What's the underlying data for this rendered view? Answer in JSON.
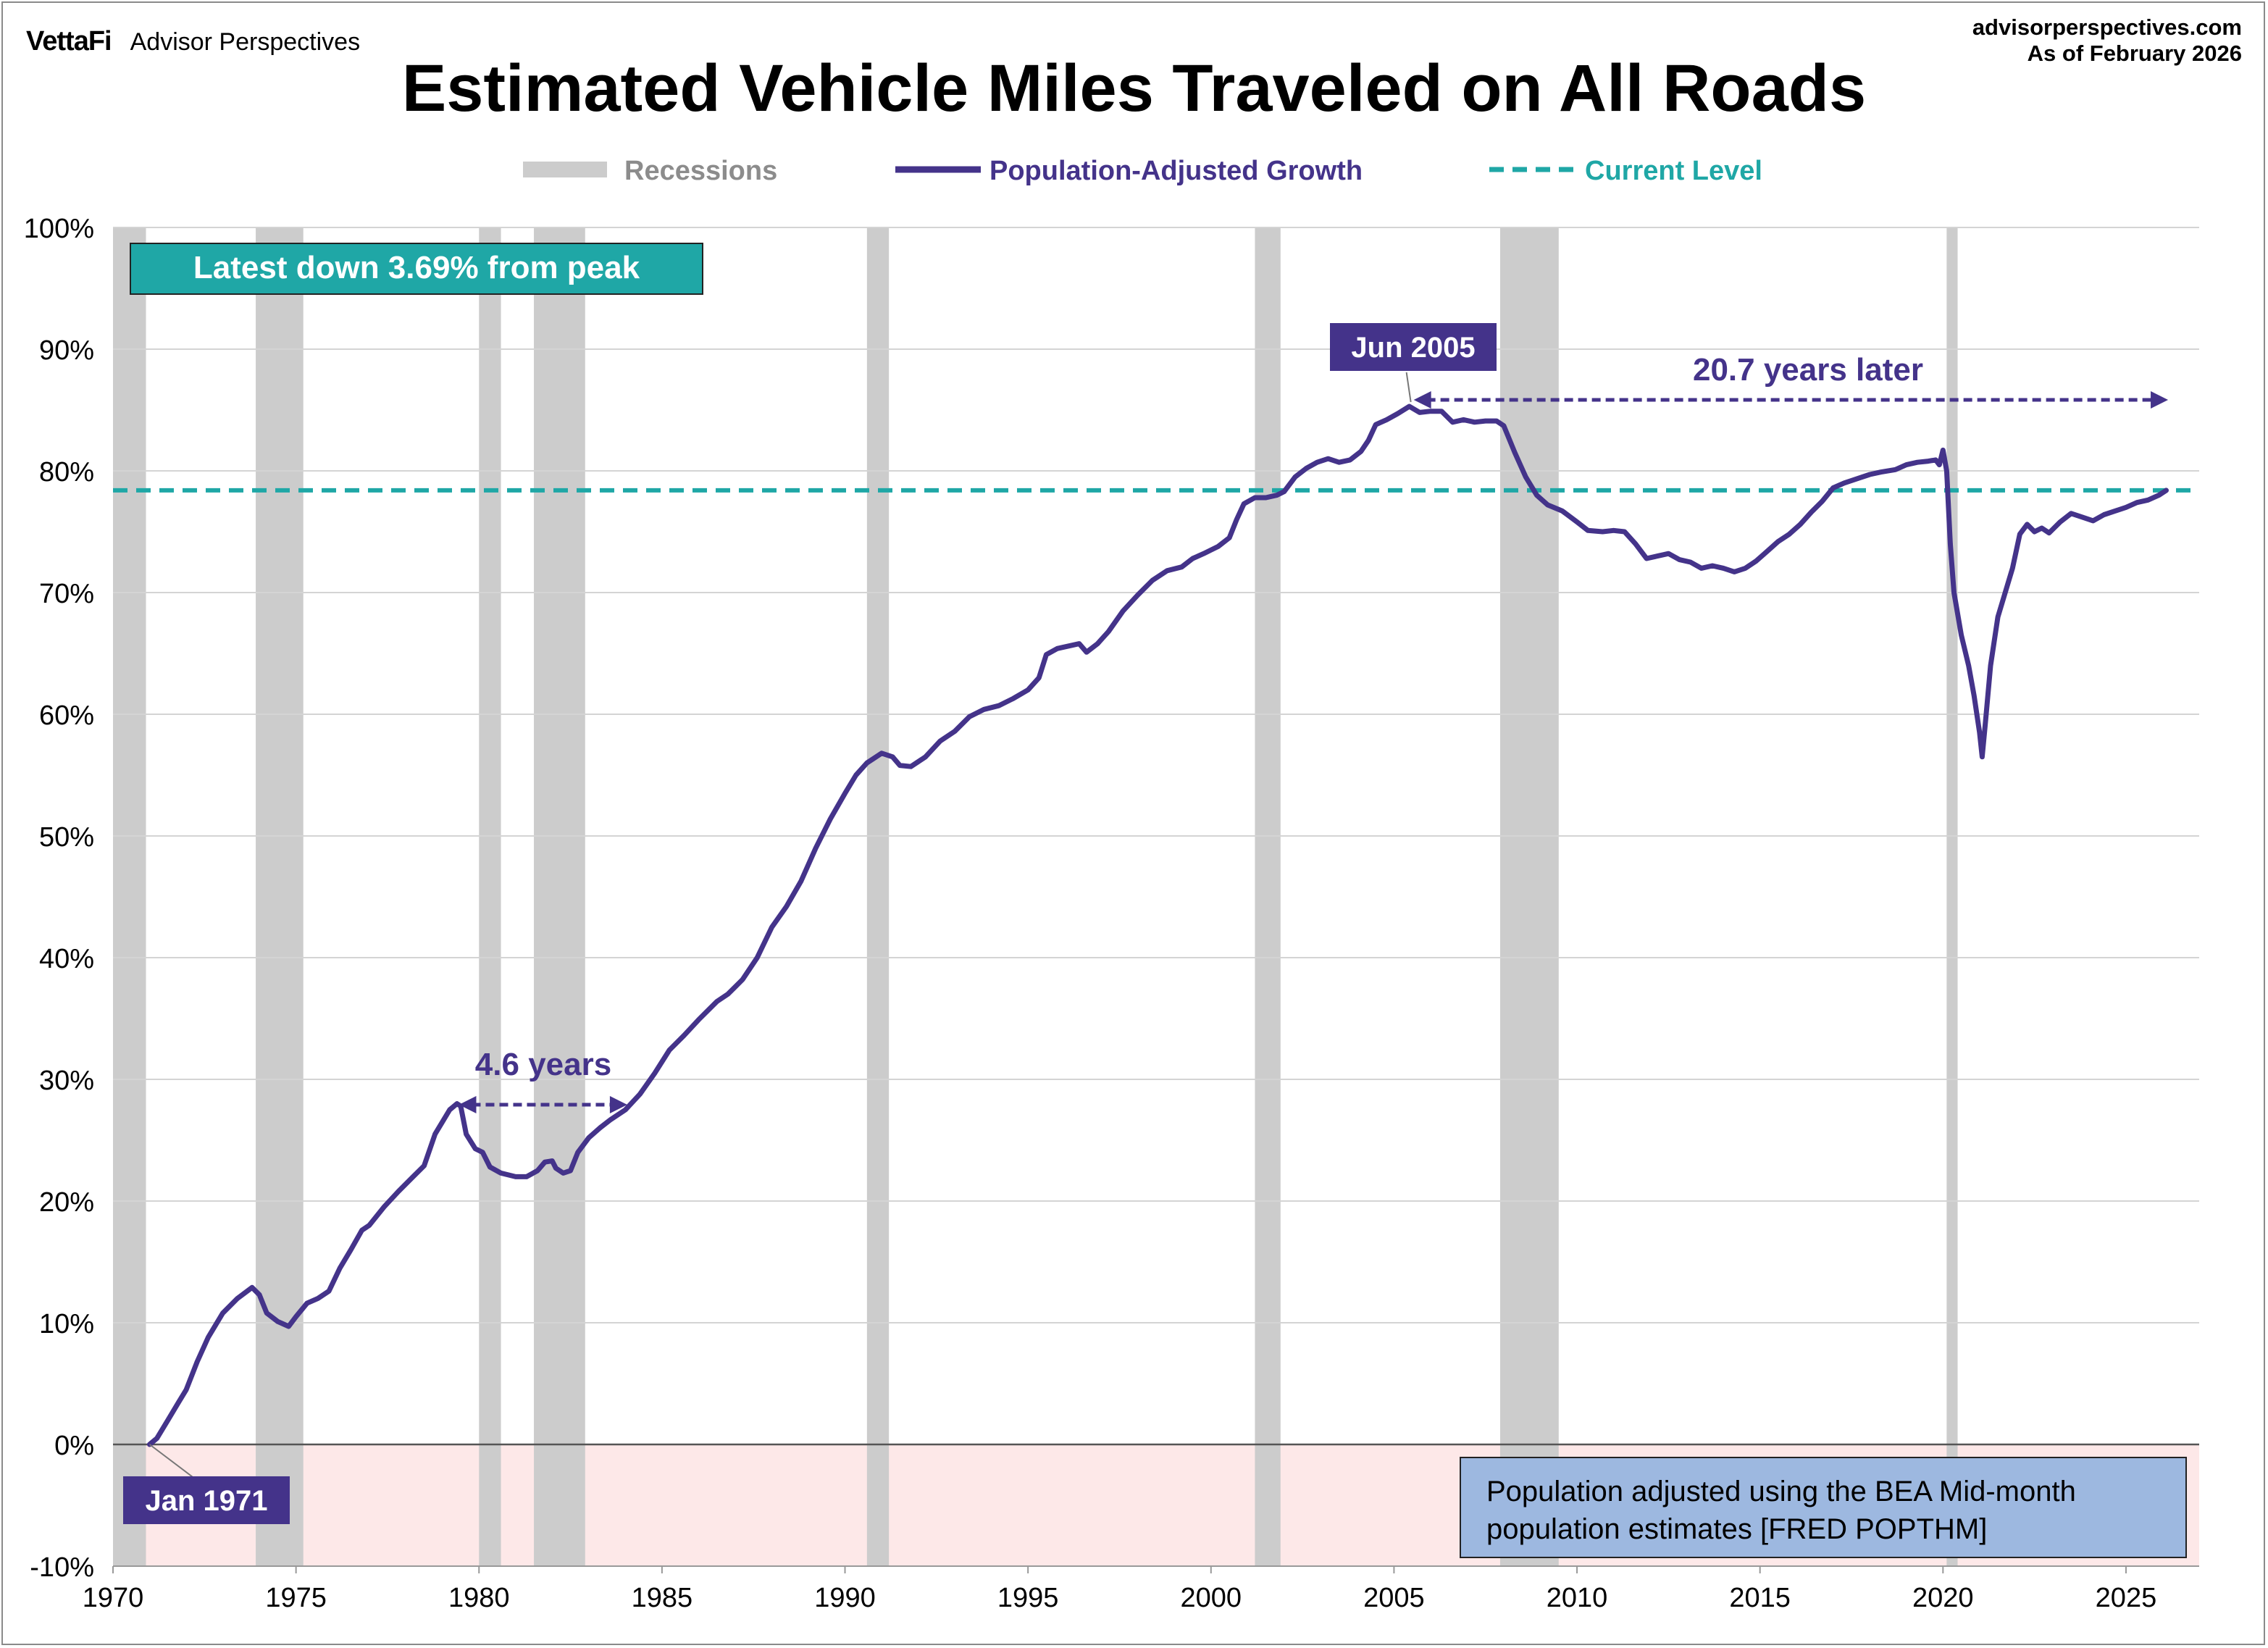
{
  "header": {
    "brand": "VettaFi",
    "brand_sub": "Advisor Perspectives",
    "site": "advisorperspectives.com",
    "date": "As of February 2026"
  },
  "legend": {
    "recessions": "Recessions",
    "growth": "Population-Adjusted Growth",
    "current": "Current Level"
  },
  "colors": {
    "line": "#44338a",
    "current": "#1fa7a6",
    "recession": "#cccccc",
    "negative_zone": "#fde8e8",
    "label_box": "#44338a",
    "note_box": "#9db8e0"
  },
  "annotations": {
    "latest": "Latest down 3.69% from peak",
    "peak": "Jun 2005",
    "start": "Jan 1971",
    "gap_1979": "4.6 years",
    "gap_2005": "20.7 years later",
    "note": [
      "Population adjusted using the BEA Mid-month",
      "population estimates [FRED POPTHM]"
    ]
  },
  "chart_data": {
    "type": "line",
    "title": "Estimated Vehicle Miles Traveled on All Roads",
    "xlim": [
      1970,
      2027
    ],
    "ylim": [
      -10,
      100
    ],
    "y_unit": "%",
    "x_ticks": [
      "1970",
      "1975",
      "1980",
      "1985",
      "1990",
      "1995",
      "2000",
      "2005",
      "2010",
      "2015",
      "2020",
      "2025"
    ],
    "y_ticks": [
      "-10%",
      "0%",
      "10%",
      "20%",
      "30%",
      "40%",
      "50%",
      "60%",
      "70%",
      "80%",
      "90%",
      "100%"
    ],
    "grid": "horizontal",
    "current_level": 78.4,
    "peak": {
      "x": 2005.42,
      "y": 85.3
    },
    "recessions": [
      [
        1970.0,
        1970.9
      ],
      [
        1973.9,
        1975.2
      ],
      [
        1980.0,
        1980.6
      ],
      [
        1981.5,
        1982.9
      ],
      [
        1990.6,
        1991.2
      ],
      [
        2001.2,
        2001.9
      ],
      [
        2007.9,
        2009.5
      ],
      [
        2020.1,
        2020.4
      ]
    ],
    "series": [
      {
        "name": "Population-Adjusted Growth",
        "points": [
          [
            1971.0,
            0.0
          ],
          [
            1971.2,
            0.5
          ],
          [
            1971.5,
            2.0
          ],
          [
            1971.8,
            3.5
          ],
          [
            1972.0,
            4.5
          ],
          [
            1972.3,
            6.8
          ],
          [
            1972.6,
            8.8
          ],
          [
            1973.0,
            10.8
          ],
          [
            1973.4,
            12.0
          ],
          [
            1973.8,
            12.9
          ],
          [
            1974.0,
            12.3
          ],
          [
            1974.2,
            10.8
          ],
          [
            1974.5,
            10.1
          ],
          [
            1974.8,
            9.7
          ],
          [
            1975.0,
            10.5
          ],
          [
            1975.3,
            11.6
          ],
          [
            1975.6,
            12.0
          ],
          [
            1975.9,
            12.6
          ],
          [
            1976.2,
            14.5
          ],
          [
            1976.5,
            16.0
          ],
          [
            1976.8,
            17.6
          ],
          [
            1977.0,
            18.0
          ],
          [
            1977.4,
            19.5
          ],
          [
            1977.8,
            20.8
          ],
          [
            1978.2,
            22.0
          ],
          [
            1978.5,
            22.9
          ],
          [
            1978.8,
            25.5
          ],
          [
            1979.0,
            26.5
          ],
          [
            1979.2,
            27.5
          ],
          [
            1979.4,
            28.0
          ],
          [
            1979.5,
            27.8
          ],
          [
            1979.65,
            25.5
          ],
          [
            1979.9,
            24.3
          ],
          [
            1980.1,
            24.0
          ],
          [
            1980.3,
            22.8
          ],
          [
            1980.6,
            22.3
          ],
          [
            1981.0,
            22.0
          ],
          [
            1981.3,
            22.0
          ],
          [
            1981.6,
            22.5
          ],
          [
            1981.8,
            23.2
          ],
          [
            1982.0,
            23.3
          ],
          [
            1982.1,
            22.7
          ],
          [
            1982.3,
            22.3
          ],
          [
            1982.5,
            22.5
          ],
          [
            1982.7,
            24.0
          ],
          [
            1983.0,
            25.2
          ],
          [
            1983.3,
            26.0
          ],
          [
            1983.6,
            26.7
          ],
          [
            1984.0,
            27.5
          ],
          [
            1984.4,
            28.8
          ],
          [
            1984.8,
            30.5
          ],
          [
            1985.2,
            32.4
          ],
          [
            1985.6,
            33.6
          ],
          [
            1986.0,
            34.9
          ],
          [
            1986.5,
            36.4
          ],
          [
            1986.8,
            37.0
          ],
          [
            1987.2,
            38.2
          ],
          [
            1987.6,
            40.0
          ],
          [
            1988.0,
            42.5
          ],
          [
            1988.4,
            44.2
          ],
          [
            1988.8,
            46.3
          ],
          [
            1989.2,
            49.0
          ],
          [
            1989.6,
            51.4
          ],
          [
            1990.0,
            53.5
          ],
          [
            1990.3,
            55.0
          ],
          [
            1990.6,
            56.0
          ],
          [
            1991.0,
            56.8
          ],
          [
            1991.3,
            56.5
          ],
          [
            1991.5,
            55.8
          ],
          [
            1991.8,
            55.7
          ],
          [
            1992.2,
            56.5
          ],
          [
            1992.6,
            57.8
          ],
          [
            1993.0,
            58.6
          ],
          [
            1993.4,
            59.8
          ],
          [
            1993.8,
            60.4
          ],
          [
            1994.2,
            60.7
          ],
          [
            1994.6,
            61.3
          ],
          [
            1995.0,
            62.0
          ],
          [
            1995.3,
            63.0
          ],
          [
            1995.5,
            64.9
          ],
          [
            1995.8,
            65.4
          ],
          [
            1996.1,
            65.6
          ],
          [
            1996.4,
            65.8
          ],
          [
            1996.6,
            65.1
          ],
          [
            1996.9,
            65.8
          ],
          [
            1997.2,
            66.8
          ],
          [
            1997.6,
            68.5
          ],
          [
            1998.0,
            69.8
          ],
          [
            1998.4,
            71.0
          ],
          [
            1998.8,
            71.8
          ],
          [
            1999.2,
            72.1
          ],
          [
            1999.5,
            72.8
          ],
          [
            1999.8,
            73.2
          ],
          [
            2000.2,
            73.8
          ],
          [
            2000.5,
            74.5
          ],
          [
            2000.7,
            76.0
          ],
          [
            2000.9,
            77.3
          ],
          [
            2001.2,
            77.8
          ],
          [
            2001.5,
            77.8
          ],
          [
            2001.8,
            78.0
          ],
          [
            2002.0,
            78.3
          ],
          [
            2002.3,
            79.5
          ],
          [
            2002.6,
            80.2
          ],
          [
            2002.9,
            80.7
          ],
          [
            2003.2,
            81.0
          ],
          [
            2003.5,
            80.7
          ],
          [
            2003.8,
            80.9
          ],
          [
            2004.1,
            81.6
          ],
          [
            2004.3,
            82.5
          ],
          [
            2004.5,
            83.8
          ],
          [
            2004.8,
            84.2
          ],
          [
            2005.1,
            84.7
          ],
          [
            2005.42,
            85.3
          ],
          [
            2005.7,
            84.8
          ],
          [
            2006.0,
            84.9
          ],
          [
            2006.3,
            84.9
          ],
          [
            2006.6,
            84.0
          ],
          [
            2006.9,
            84.2
          ],
          [
            2007.2,
            84.0
          ],
          [
            2007.5,
            84.1
          ],
          [
            2007.8,
            84.1
          ],
          [
            2008.0,
            83.7
          ],
          [
            2008.3,
            81.5
          ],
          [
            2008.6,
            79.5
          ],
          [
            2008.9,
            78.0
          ],
          [
            2009.2,
            77.2
          ],
          [
            2009.6,
            76.7
          ],
          [
            2010.0,
            75.8
          ],
          [
            2010.3,
            75.1
          ],
          [
            2010.7,
            75.0
          ],
          [
            2011.0,
            75.1
          ],
          [
            2011.3,
            75.0
          ],
          [
            2011.6,
            74.0
          ],
          [
            2011.9,
            72.8
          ],
          [
            2012.2,
            73.0
          ],
          [
            2012.5,
            73.2
          ],
          [
            2012.8,
            72.7
          ],
          [
            2013.1,
            72.5
          ],
          [
            2013.4,
            72.0
          ],
          [
            2013.7,
            72.2
          ],
          [
            2014.0,
            72.0
          ],
          [
            2014.3,
            71.7
          ],
          [
            2014.6,
            72.0
          ],
          [
            2014.9,
            72.6
          ],
          [
            2015.2,
            73.4
          ],
          [
            2015.5,
            74.2
          ],
          [
            2015.8,
            74.8
          ],
          [
            2016.1,
            75.6
          ],
          [
            2016.4,
            76.6
          ],
          [
            2016.7,
            77.5
          ],
          [
            2017.0,
            78.6
          ],
          [
            2017.3,
            79.0
          ],
          [
            2017.7,
            79.4
          ],
          [
            2018.0,
            79.7
          ],
          [
            2018.3,
            79.9
          ],
          [
            2018.7,
            80.1
          ],
          [
            2019.0,
            80.5
          ],
          [
            2019.3,
            80.7
          ],
          [
            2019.6,
            80.8
          ],
          [
            2019.8,
            80.9
          ],
          [
            2019.9,
            80.5
          ],
          [
            2020.0,
            81.7
          ],
          [
            2020.1,
            80.0
          ],
          [
            2020.2,
            74.0
          ],
          [
            2020.3,
            70.0
          ],
          [
            2020.5,
            66.5
          ],
          [
            2020.7,
            64.0
          ],
          [
            2020.85,
            61.5
          ],
          [
            2021.0,
            58.5
          ],
          [
            2021.07,
            56.5
          ],
          [
            2021.15,
            59.0
          ],
          [
            2021.3,
            64.0
          ],
          [
            2021.5,
            68.0
          ],
          [
            2021.7,
            70.0
          ],
          [
            2021.9,
            72.0
          ],
          [
            2022.1,
            74.8
          ],
          [
            2022.3,
            75.6
          ],
          [
            2022.5,
            75.0
          ],
          [
            2022.7,
            75.3
          ],
          [
            2022.9,
            74.9
          ],
          [
            2023.2,
            75.8
          ],
          [
            2023.5,
            76.5
          ],
          [
            2023.8,
            76.2
          ],
          [
            2024.1,
            75.9
          ],
          [
            2024.4,
            76.4
          ],
          [
            2024.7,
            76.7
          ],
          [
            2025.0,
            77.0
          ],
          [
            2025.3,
            77.4
          ],
          [
            2025.6,
            77.6
          ],
          [
            2025.9,
            78.0
          ],
          [
            2026.1,
            78.4
          ]
        ]
      }
    ]
  }
}
